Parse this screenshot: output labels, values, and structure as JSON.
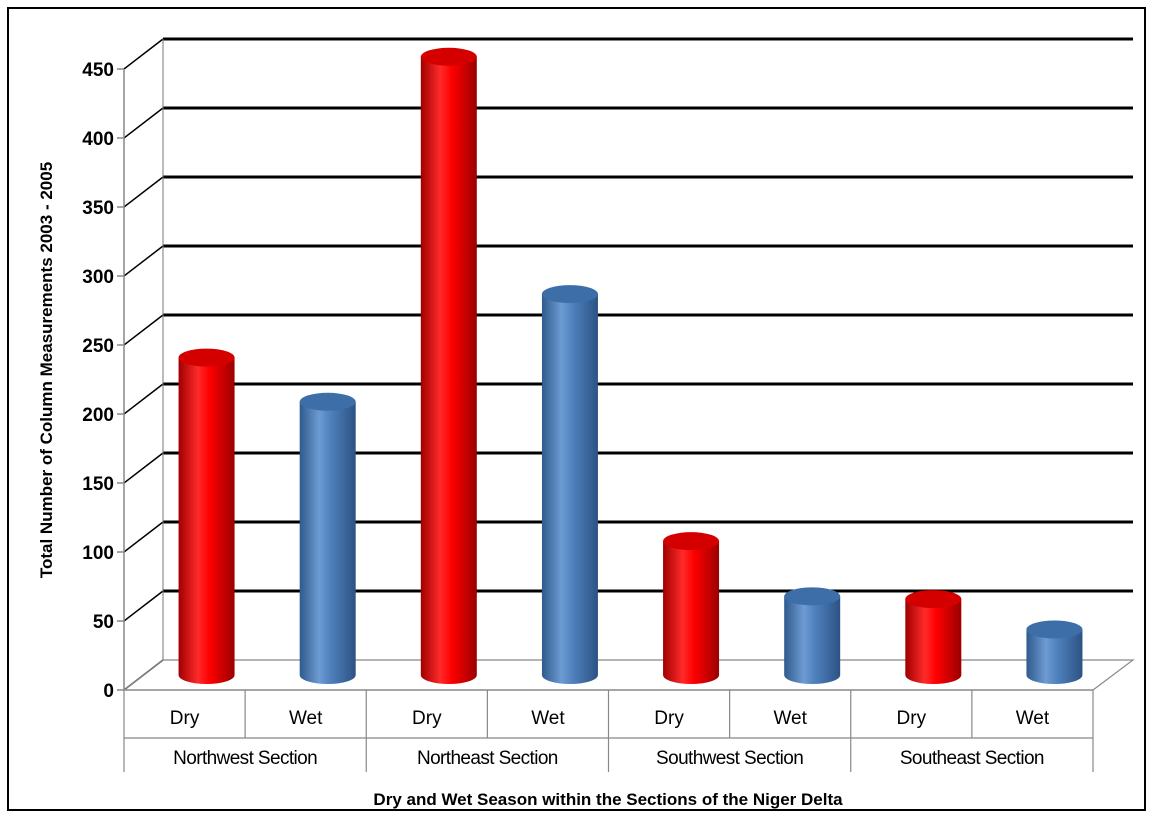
{
  "chart_data": {
    "type": "bar",
    "style": "3d-cylinder",
    "title": "",
    "xlabel": "Dry and Wet Season within the Sections of the Niger Delta",
    "ylabel": "Total Number of Column Measurements 2003 - 2005",
    "ylim": [
      0,
      450
    ],
    "yticks": [
      0,
      50,
      100,
      150,
      200,
      250,
      300,
      350,
      400,
      450
    ],
    "grid": true,
    "groups": [
      "Northwest Section",
      "Northeast Section",
      "Southwest Section",
      "Southeast Section"
    ],
    "categories": [
      "Dry",
      "Wet",
      "Dry",
      "Wet",
      "Dry",
      "Wet",
      "Dry",
      "Wet"
    ],
    "values": [
      230,
      198,
      448,
      276,
      97,
      57,
      55,
      33
    ],
    "colors": {
      "Dry": "#e00000",
      "Wet": "#4f81bd"
    }
  }
}
